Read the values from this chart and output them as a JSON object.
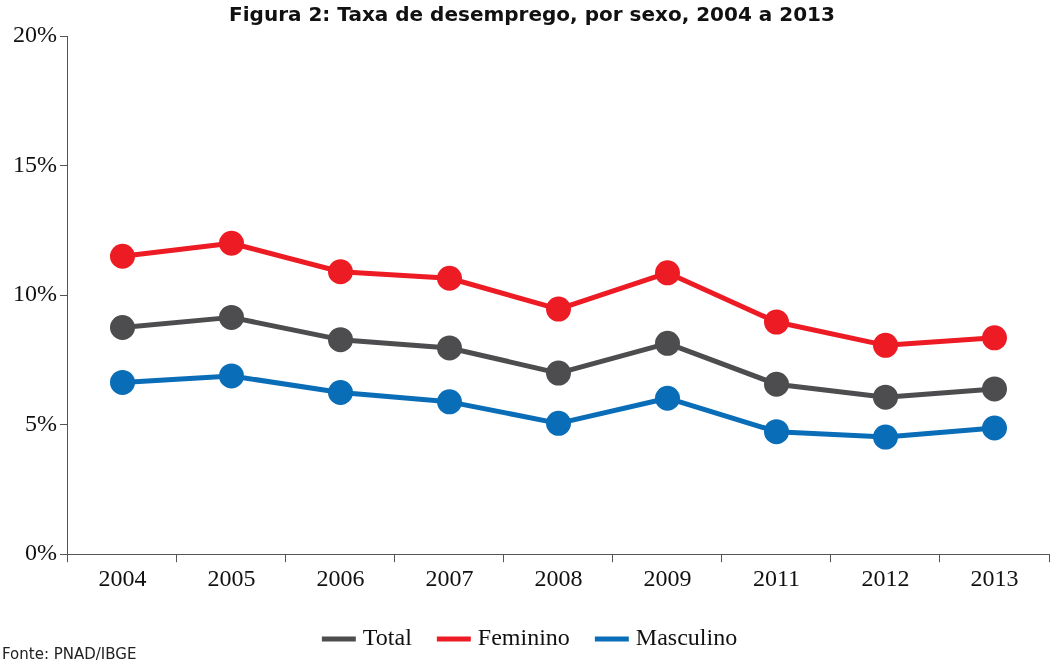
{
  "chart_data": {
    "type": "line",
    "title": "Figura 2: Taxa de desemprego, por sexo, 2004 a 2013",
    "categories": [
      "2004",
      "2005",
      "2006",
      "2007",
      "2008",
      "2009",
      "2011",
      "2012",
      "2013"
    ],
    "series": [
      {
        "name": "Total",
        "color": "#4d4d4f",
        "values": [
          8.75,
          9.14,
          8.28,
          7.96,
          6.99,
          8.14,
          6.56,
          6.06,
          6.38
        ]
      },
      {
        "name": "Feminino",
        "color": "#ed1c24",
        "values": [
          11.5,
          12.0,
          10.9,
          10.65,
          9.46,
          10.86,
          8.96,
          8.06,
          8.35
        ]
      },
      {
        "name": "Masculino",
        "color": "#0a6db7",
        "values": [
          6.63,
          6.88,
          6.24,
          5.88,
          5.05,
          6.02,
          4.73,
          4.52,
          4.87
        ]
      }
    ],
    "ylim": [
      0,
      20
    ],
    "yticks": [
      {
        "value": 0,
        "label": "0%"
      },
      {
        "value": 5,
        "label": "5%"
      },
      {
        "value": 10,
        "label": "10%"
      },
      {
        "value": 15,
        "label": "15%"
      },
      {
        "value": 20,
        "label": "20%"
      }
    ],
    "grid": false,
    "legend": "bottom",
    "marker": "circle",
    "line_style": "solid",
    "annotations": [
      "Fonte: PNAD/IBGE"
    ]
  }
}
